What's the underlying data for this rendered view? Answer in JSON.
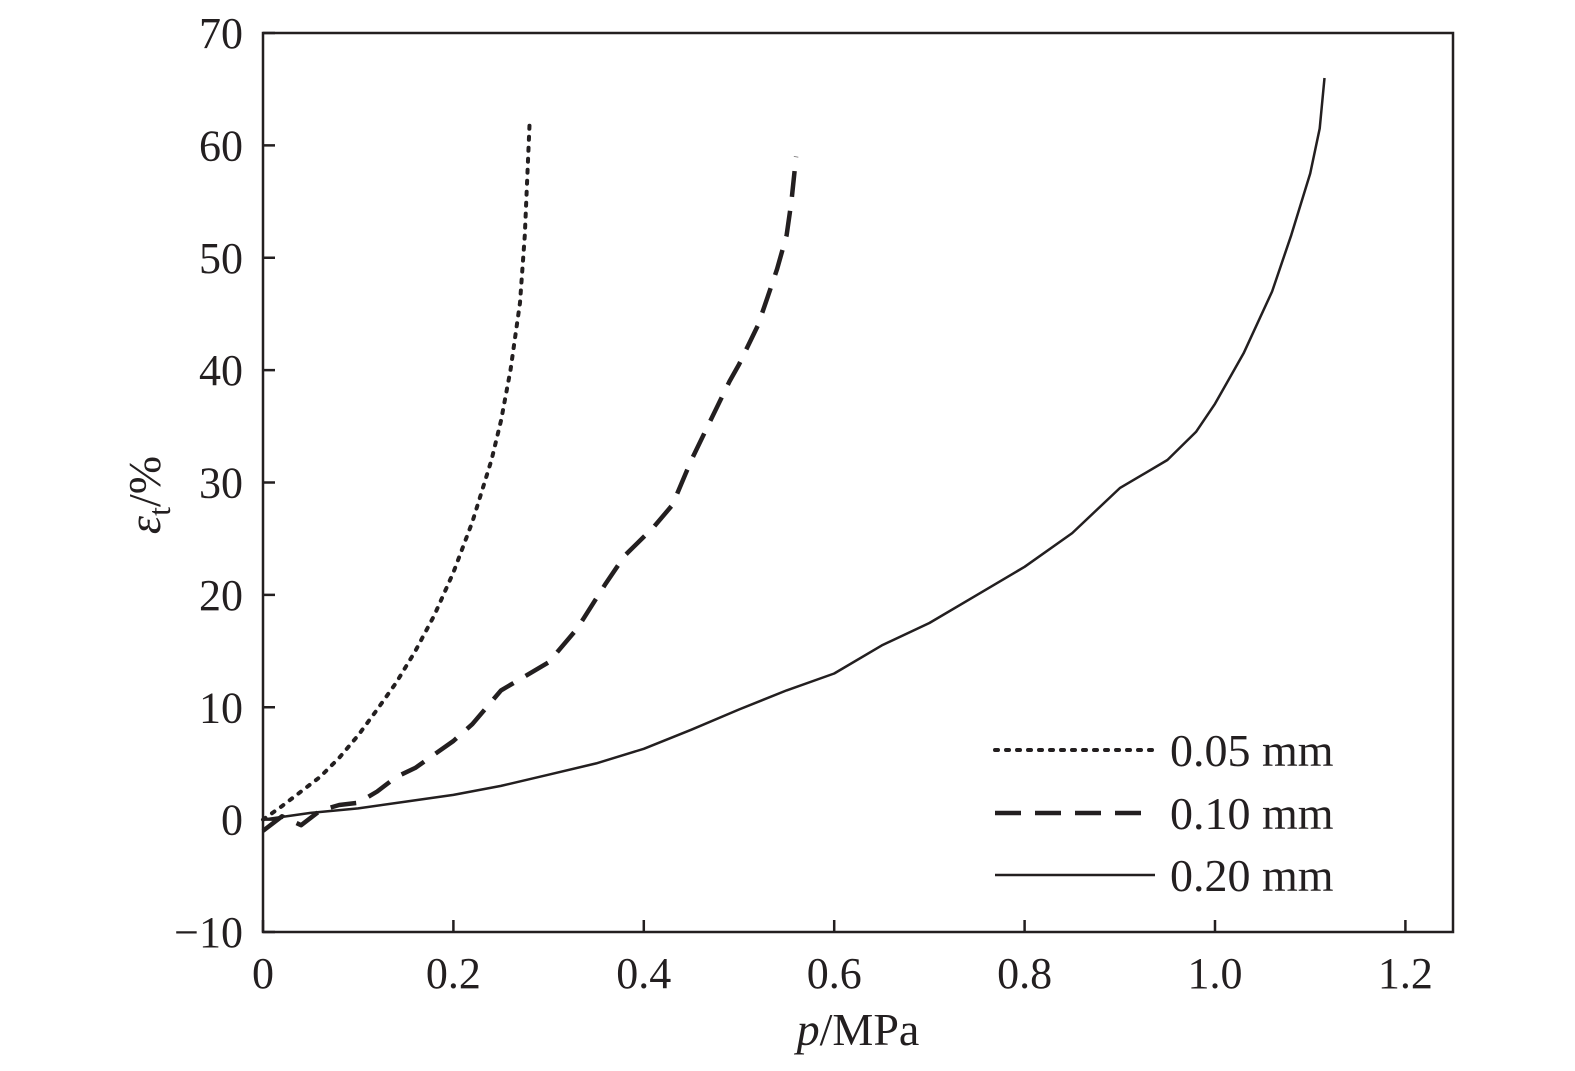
{
  "chart_data": {
    "type": "line",
    "title": "",
    "xlabel": {
      "italic": "p",
      "rest": "/MPa"
    },
    "ylabel": {
      "symbol": "ε",
      "subscript": "t",
      "rest": "/%"
    },
    "xlim": [
      0,
      1.25
    ],
    "ylim": [
      -10,
      70
    ],
    "x_ticks": [
      0,
      0.2,
      0.4,
      0.6,
      0.8,
      1.0,
      1.2
    ],
    "x_tick_labels": [
      "0",
      "0.2",
      "0.4",
      "0.6",
      "0.8",
      "1.0",
      "1.2"
    ],
    "y_ticks": [
      -10,
      0,
      10,
      20,
      30,
      40,
      50,
      60,
      70
    ],
    "y_tick_labels": [
      "−10",
      "0",
      "10",
      "20",
      "30",
      "40",
      "50",
      "60",
      "70"
    ],
    "grid": false,
    "legend_position": "bottom-right",
    "colors": {
      "line": "#231f20",
      "axis": "#231f20"
    },
    "series": [
      {
        "name": "0.05 mm",
        "style": "dotted",
        "x": [
          0.0,
          0.02,
          0.04,
          0.06,
          0.08,
          0.1,
          0.12,
          0.14,
          0.16,
          0.18,
          0.2,
          0.22,
          0.24,
          0.25,
          0.26,
          0.27,
          0.275,
          0.28
        ],
        "y": [
          0.0,
          1.2,
          2.5,
          3.8,
          5.5,
          7.5,
          9.8,
          12.2,
          15.0,
          18.2,
          22.0,
          26.5,
          32.0,
          35.5,
          40.0,
          46.0,
          52.0,
          62.0
        ]
      },
      {
        "name": "0.10 mm",
        "style": "dashed",
        "x": [
          0.0,
          0.02,
          0.04,
          0.06,
          0.08,
          0.1,
          0.12,
          0.14,
          0.16,
          0.18,
          0.2,
          0.22,
          0.25,
          0.27,
          0.3,
          0.33,
          0.36,
          0.38,
          0.41,
          0.43,
          0.45,
          0.47,
          0.49,
          0.5,
          0.52,
          0.53,
          0.54,
          0.55,
          0.555,
          0.56
        ],
        "y": [
          -1.0,
          0.3,
          -0.5,
          0.8,
          1.3,
          1.5,
          2.5,
          3.8,
          4.6,
          5.8,
          7.0,
          8.5,
          11.5,
          12.5,
          14.0,
          17.0,
          21.0,
          23.5,
          26.0,
          28.0,
          32.0,
          35.5,
          39.0,
          40.5,
          44.0,
          46.5,
          49.0,
          52.0,
          55.0,
          59.0
        ]
      },
      {
        "name": "0.20 mm",
        "style": "solid",
        "x": [
          0.0,
          0.05,
          0.1,
          0.15,
          0.2,
          0.25,
          0.3,
          0.35,
          0.4,
          0.45,
          0.5,
          0.55,
          0.6,
          0.65,
          0.7,
          0.75,
          0.8,
          0.85,
          0.9,
          0.95,
          0.98,
          1.0,
          1.03,
          1.06,
          1.08,
          1.1,
          1.11,
          1.115
        ],
        "y": [
          0.0,
          0.6,
          1.0,
          1.6,
          2.2,
          3.0,
          4.0,
          5.0,
          6.3,
          8.0,
          9.8,
          11.5,
          13.0,
          15.5,
          17.5,
          20.0,
          22.5,
          25.5,
          29.5,
          32.0,
          34.5,
          37.0,
          41.5,
          47.0,
          52.0,
          57.5,
          61.5,
          66.0
        ]
      }
    ]
  }
}
